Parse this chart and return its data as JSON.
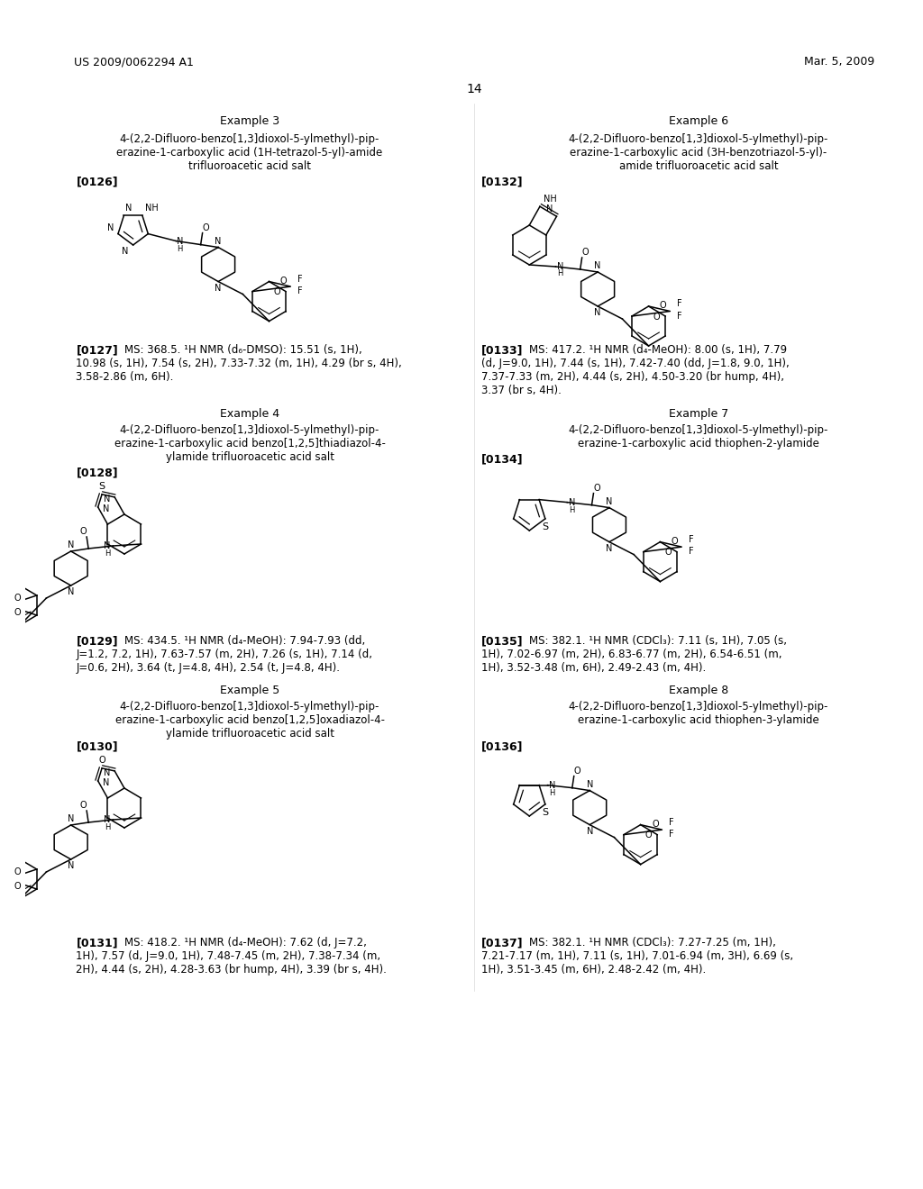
{
  "header_left": "US 2009/0062294 A1",
  "header_right": "Mar. 5, 2009",
  "page_number": "14",
  "background": "#ffffff",
  "text_color": "#000000"
}
